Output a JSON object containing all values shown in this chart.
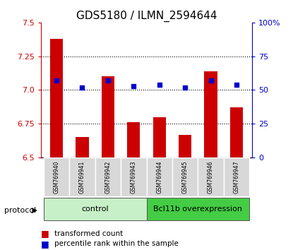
{
  "title": "GDS5180 / ILMN_2594644",
  "samples": [
    "GSM769940",
    "GSM769941",
    "GSM769942",
    "GSM769943",
    "GSM769944",
    "GSM769945",
    "GSM769946",
    "GSM769947"
  ],
  "transformed_count": [
    7.38,
    6.65,
    7.1,
    6.76,
    6.8,
    6.67,
    7.14,
    6.87
  ],
  "percentile_rank": [
    57,
    52,
    57,
    53,
    54,
    52,
    57,
    54
  ],
  "ylim_left": [
    6.5,
    7.5
  ],
  "ylim_right": [
    0,
    100
  ],
  "yticks_left": [
    6.5,
    6.75,
    7.0,
    7.25,
    7.5
  ],
  "yticks_right": [
    0,
    25,
    50,
    75,
    100
  ],
  "ytick_labels_right": [
    "0",
    "25",
    "50",
    "75",
    "100%"
  ],
  "bar_color": "#cc0000",
  "dot_color": "#0000cc",
  "group_labels": [
    "control",
    "Bcl11b overexpression"
  ],
  "group_colors_light": "#c8f0c8",
  "group_colors_dark": "#44cc44",
  "protocol_label": "protocol",
  "legend_bar_label": "transformed count",
  "legend_dot_label": "percentile rank within the sample",
  "bar_bottom": 6.5,
  "title_fontsize": 11,
  "tick_fontsize": 8,
  "axis_color_left": "#cc0000",
  "axis_color_right": "#0000cc",
  "grid_lines": [
    6.75,
    7.0,
    7.25
  ]
}
